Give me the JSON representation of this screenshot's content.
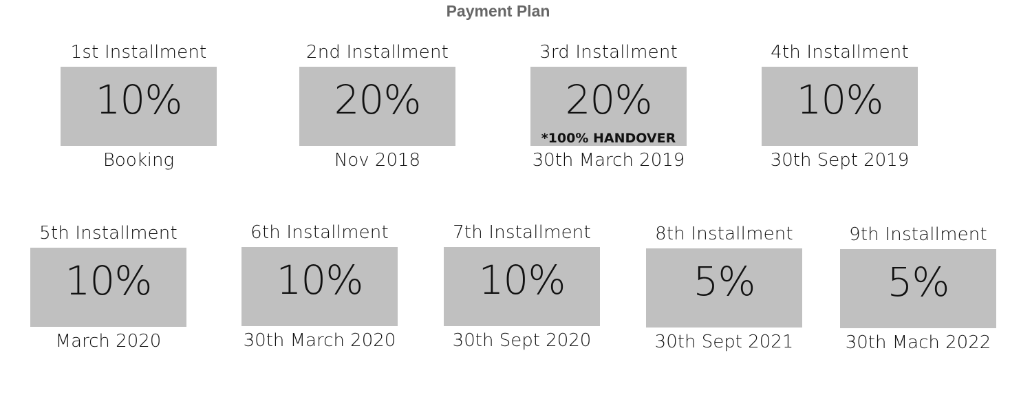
{
  "title": "Payment Plan",
  "box_color": "#c0c0c0",
  "installments": [
    {
      "label": "1st Installment",
      "percent": "10%",
      "date": "Booking"
    },
    {
      "label": "2nd Installment",
      "percent": "20%",
      "date": "Nov 2018"
    },
    {
      "label": "3rd Installment",
      "percent": "20%",
      "note": "*100% HANDOVER",
      "date": "30th March 2019"
    },
    {
      "label": "4th Installment",
      "percent": "10%",
      "date": "30th Sept 2019"
    },
    {
      "label": "5th Installment",
      "percent": "10%",
      "date": "March 2020"
    },
    {
      "label": "6th Installment",
      "percent": "10%",
      "date": "30th March 2020"
    },
    {
      "label": "7th Installment",
      "percent": "10%",
      "date": "30th Sept 2020"
    },
    {
      "label": "8th Installment",
      "percent": "5%",
      "date": "30th Sept 2021"
    },
    {
      "label": "9th Installment",
      "percent": "5%",
      "date": "30th Mach 2022"
    }
  ]
}
